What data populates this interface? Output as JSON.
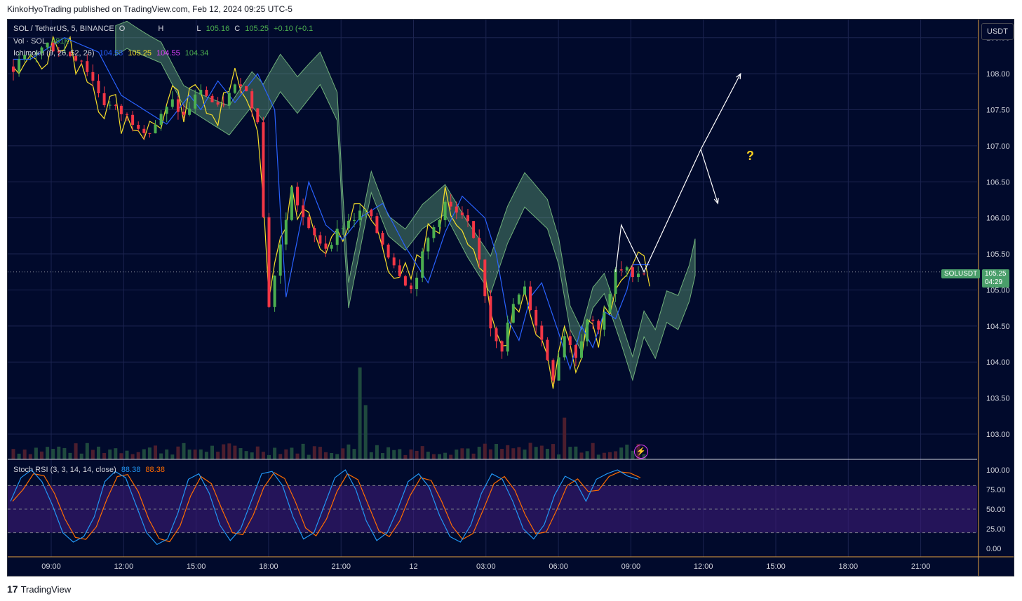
{
  "header": {
    "published_text": "KinkoHyoTrading published on TradingView.com, Feb 12, 2024 09:25 UTC-5"
  },
  "footer": {
    "brand": "TradingView"
  },
  "toolbar": {
    "currency_button": "USDT"
  },
  "legend": {
    "symbol": "SOL / TetherUS, 5, BINANCE",
    "o_label": "O",
    "h_label": "H",
    "l_label": "L",
    "c_label": "C",
    "l_value": "105.16",
    "c_value": "105.25",
    "change": "+0.10 (+0.1",
    "volume_label": "Vol · SOL",
    "volume_value": "481K",
    "ichimoku_label": "Ichimoku (9, 26, 52, 26)",
    "ichimoku_v1": "104.53",
    "ichimoku_v2": "105.25",
    "ichimoku_v3": "104.55",
    "ichimoku_v4": "104.34",
    "stoch_label": "Stoch RSI (3, 3, 14, 14, close)",
    "stoch_k": "88.38",
    "stoch_d": "88.38"
  },
  "price_tag": {
    "symbol": "SOLUSDT",
    "price": "105.25",
    "countdown": "04:29"
  },
  "annotation": {
    "question": "?"
  },
  "colors": {
    "background": "#010a2c",
    "up": "#4caf50",
    "down": "#f23645",
    "tenkan": "#f7e02a",
    "kijun": "#2962ff",
    "cloud_bull": "#a5d6a7",
    "cloud_bear": "#e040fb",
    "stoch_k": "#2196f3",
    "stoch_d": "#ff6d00",
    "stoch_band": "#3c1a78",
    "tag_green": "#4a9e6a"
  },
  "chart_data": {
    "type": "candlestick",
    "price_axis": {
      "ticks": [
        "108.50",
        "108.00",
        "107.50",
        "107.00",
        "106.50",
        "106.00",
        "105.50",
        "105.00",
        "104.50",
        "104.00",
        "103.50",
        "103.00"
      ],
      "ylim": [
        102.65,
        108.75
      ]
    },
    "time_axis": {
      "ticks": [
        "09:00",
        "12:00",
        "15:00",
        "18:00",
        "21:00",
        "12",
        "03:00",
        "06:00",
        "09:00",
        "12:00",
        "15:00",
        "18:00",
        "21:00"
      ]
    },
    "price_path": [
      [
        0,
        108.1
      ],
      [
        6,
        108.4
      ],
      [
        12,
        108.2
      ],
      [
        16,
        107.6
      ],
      [
        20,
        107.4
      ],
      [
        24,
        107.2
      ],
      [
        28,
        107.6
      ],
      [
        30,
        107.4
      ],
      [
        33,
        107.8
      ],
      [
        36,
        107.5
      ],
      [
        40,
        107.9
      ],
      [
        43,
        107.4
      ],
      [
        44,
        106.0
      ],
      [
        45,
        104.8
      ],
      [
        47,
        105.6
      ],
      [
        49,
        106.4
      ],
      [
        52,
        105.8
      ],
      [
        55,
        105.6
      ],
      [
        58,
        105.9
      ],
      [
        62,
        106.1
      ],
      [
        66,
        105.5
      ],
      [
        70,
        105.0
      ],
      [
        73,
        105.7
      ],
      [
        76,
        106.2
      ],
      [
        80,
        105.9
      ],
      [
        82,
        105.4
      ],
      [
        84,
        104.5
      ],
      [
        86,
        104.2
      ],
      [
        88,
        104.8
      ],
      [
        90,
        105.0
      ],
      [
        93,
        104.3
      ],
      [
        95,
        103.8
      ],
      [
        97,
        104.4
      ],
      [
        99,
        104.1
      ],
      [
        101,
        104.6
      ],
      [
        103,
        104.5
      ],
      [
        105,
        104.9
      ],
      [
        106,
        105.25
      ]
    ],
    "projection": [
      [
        106,
        105.25
      ],
      [
        107,
        105.9
      ],
      [
        111,
        105.25
      ],
      [
        121,
        106.95
      ],
      [
        128,
        108.0
      ]
    ],
    "projection_branch": [
      [
        121,
        106.95
      ],
      [
        124,
        106.2
      ]
    ],
    "current_price": 105.25,
    "stoch_rsi": {
      "ticks": [
        "100.00",
        "75.00",
        "50.00",
        "25.00",
        "0.00"
      ],
      "upper_band": 80,
      "middle": 50,
      "lower_band": 20,
      "k_path": [
        60,
        90,
        100,
        85,
        55,
        20,
        8,
        15,
        40,
        85,
        98,
        90,
        55,
        20,
        5,
        12,
        45,
        88,
        95,
        70,
        30,
        10,
        25,
        60,
        95,
        98,
        80,
        40,
        12,
        20,
        55,
        90,
        100,
        75,
        35,
        10,
        20,
        50,
        85,
        95,
        78,
        42,
        15,
        8,
        30,
        70,
        95,
        88,
        60,
        25,
        12,
        30,
        68,
        92,
        85,
        60,
        88,
        95,
        100,
        92,
        88
      ]
    }
  }
}
